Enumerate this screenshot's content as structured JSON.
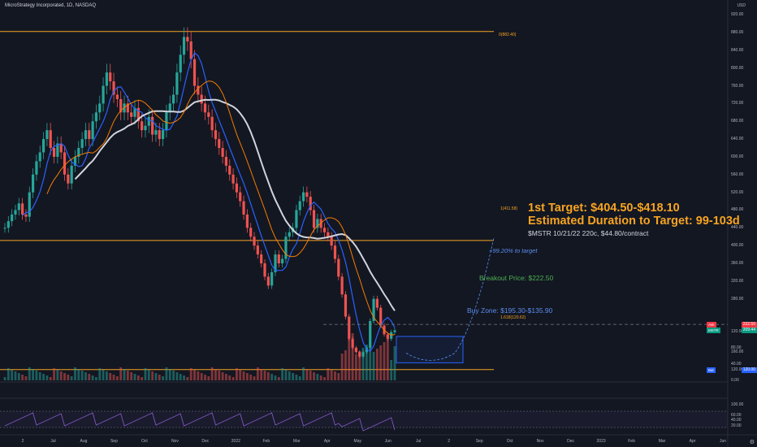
{
  "title": "MicroStrategy Incorporated, 1D, NASDAQ",
  "currency": "USD",
  "annotations": {
    "target": "1st Target: $404.50-$418.10",
    "duration": "Estimated Duration to Target: 99-103d",
    "option": "$MSTR 10/21/22 220c, $44.80/contract",
    "pct": "+99.20% to target",
    "breakout": "Breakout Price: $222.50",
    "buyzone": "Buy Zone: $195.30-$135.90"
  },
  "fib_labels": {
    "top": "0(882.40)",
    "one": "1(411.58)",
    "ext": "1.618(120.62)"
  },
  "price_axis": {
    "ticks": [
      "920.00",
      "880.00",
      "840.00",
      "800.00",
      "760.00",
      "720.00",
      "680.00",
      "640.00",
      "600.00",
      "560.00",
      "520.00",
      "480.00",
      "440.00",
      "400.00",
      "360.00",
      "320.00",
      "280.00",
      "160.00",
      "120.00"
    ],
    "boxes": [
      {
        "tag": "Ask",
        "value": "222.50",
        "color": "#f23645"
      },
      {
        "tag": "MSTR",
        "value": "209.44",
        "color": "#089981"
      },
      {
        "tag": "Bid",
        "value": "120.00",
        "color": "#2962ff"
      }
    ]
  },
  "volume_axis": {
    "ticks": [
      "120.00",
      "80.00",
      "40.00",
      "0.00"
    ]
  },
  "rsi_axis": {
    "ticks": [
      "100.00",
      "60.00",
      "40.00",
      "20.00"
    ]
  },
  "x_axis": {
    "ticks": [
      "2",
      "Jul",
      "Aug",
      "Sep",
      "Oct",
      "Nov",
      "Dec",
      "2022",
      "Feb",
      "Mar",
      "Apr",
      "May",
      "Jun",
      "Jul",
      "2",
      "Sep",
      "Oct",
      "Nov",
      "Dec",
      "2023",
      "Feb",
      "Mar",
      "Apr",
      "Jun"
    ]
  },
  "colors": {
    "background": "#131722",
    "up": "#26a69a",
    "down": "#ef5350",
    "fib": "#f7a421",
    "sma200": "#d1d4dc",
    "ema": "#2962ff",
    "ma_orange": "#f57c00",
    "buy_zone": "#2962ff",
    "rsi": "#7e57c2"
  },
  "chart_data": {
    "type": "candlestick",
    "symbol": "MSTR",
    "interval": "1D",
    "ylim": [
      100,
      935
    ],
    "fib_levels": [
      {
        "label": "0",
        "value": 882.4
      },
      {
        "label": "1",
        "value": 411.58
      },
      {
        "label": "1.618",
        "value": 120.62
      }
    ],
    "breakout_price": 222.5,
    "buy_zone": [
      135.9,
      195.3
    ],
    "target_range": [
      404.5,
      418.1
    ],
    "last_price": 209.44,
    "ask": 222.5,
    "bid": 120.0,
    "close_series": [
      440,
      455,
      470,
      480,
      495,
      470,
      465,
      520,
      560,
      590,
      610,
      640,
      660,
      620,
      600,
      630,
      610,
      560,
      540,
      580,
      600,
      620,
      640,
      660,
      640,
      680,
      700,
      720,
      760,
      790,
      770,
      740,
      730,
      700,
      720,
      700,
      690,
      710,
      680,
      660,
      670,
      690,
      650,
      660,
      640,
      660,
      700,
      720,
      740,
      790,
      830,
      870,
      860,
      820,
      760,
      740,
      720,
      700,
      690,
      660,
      640,
      620,
      600,
      580,
      560,
      540,
      520,
      500,
      470,
      440,
      420,
      400,
      380,
      360,
      330,
      310,
      340,
      380,
      360,
      370,
      420,
      430,
      440,
      480,
      500,
      520,
      510,
      480,
      440,
      460,
      440,
      430,
      420,
      400,
      370,
      330,
      290,
      240,
      190,
      170,
      160,
      150,
      160,
      170,
      230,
      280,
      260,
      220,
      200,
      190,
      205,
      209
    ]
  }
}
